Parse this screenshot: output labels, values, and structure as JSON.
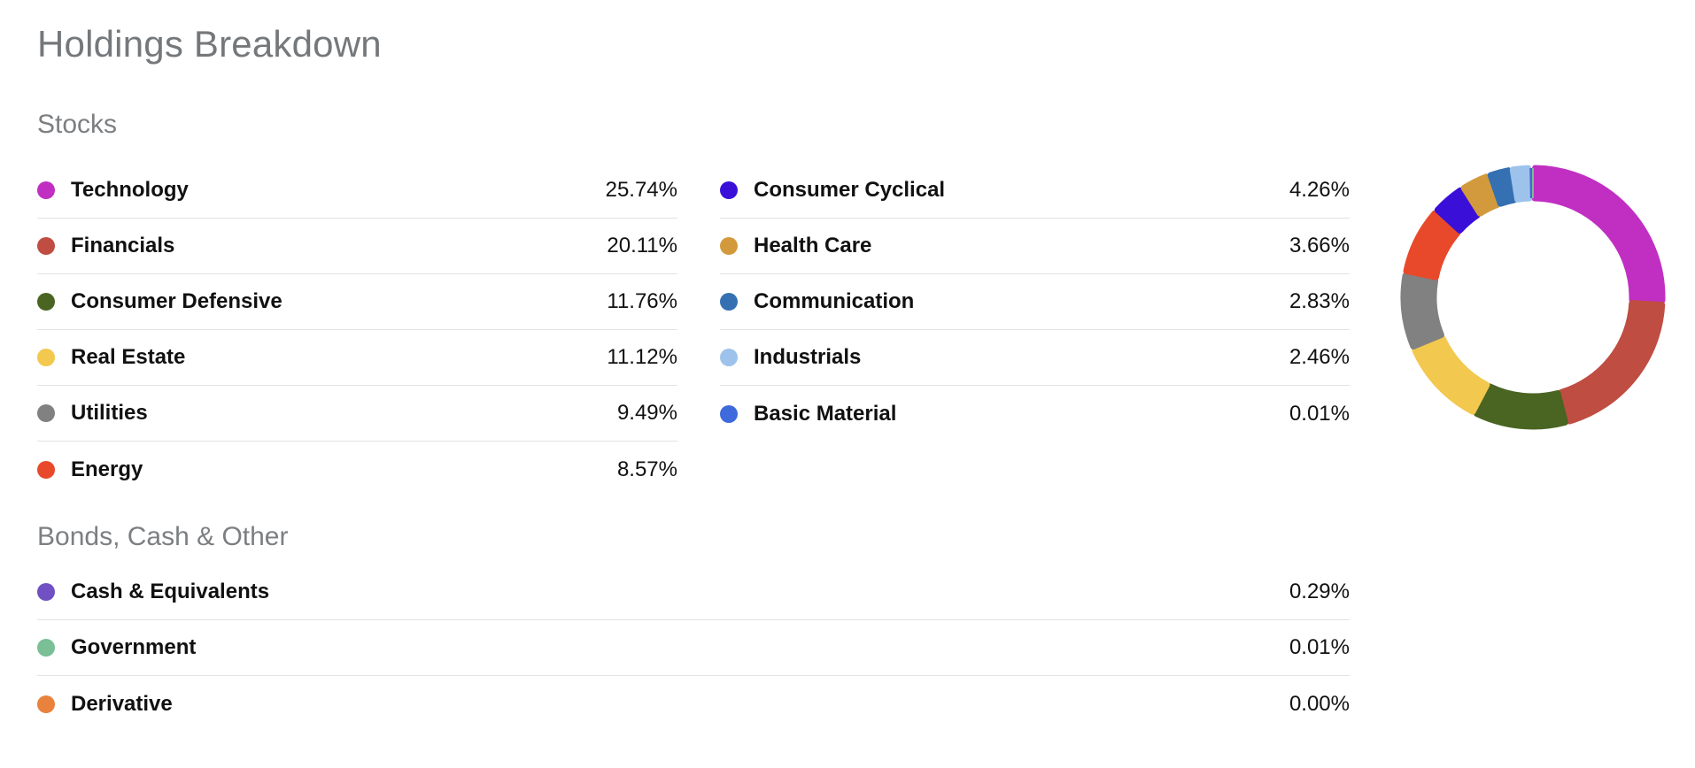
{
  "title": "Holdings Breakdown",
  "sections": [
    {
      "title": "Stocks",
      "columns": [
        {
          "items": [
            {
              "label": "Technology",
              "pct": "25.74%",
              "color": "#c02fc2"
            },
            {
              "label": "Financials",
              "pct": "20.11%",
              "color": "#bf4d42"
            },
            {
              "label": "Consumer Defensive",
              "pct": "11.76%",
              "color": "#4a6422"
            },
            {
              "label": "Real Estate",
              "pct": "11.12%",
              "color": "#f2c84e"
            },
            {
              "label": "Utilities",
              "pct": "9.49%",
              "color": "#818181"
            },
            {
              "label": "Energy",
              "pct": "8.57%",
              "color": "#e8492a"
            }
          ]
        },
        {
          "items": [
            {
              "label": "Consumer Cyclical",
              "pct": "4.26%",
              "color": "#3a10d9"
            },
            {
              "label": "Health Care",
              "pct": "3.66%",
              "color": "#d39a3d"
            },
            {
              "label": "Communication",
              "pct": "2.83%",
              "color": "#3470b2"
            },
            {
              "label": "Industrials",
              "pct": "2.46%",
              "color": "#9dc3ec"
            },
            {
              "label": "Basic Material",
              "pct": "0.01%",
              "color": "#3f6adc"
            }
          ]
        }
      ]
    },
    {
      "title": "Bonds, Cash & Other",
      "columns": [
        {
          "items": [
            {
              "label": "Cash & Equivalents",
              "pct": "0.29%",
              "color": "#7050c2"
            },
            {
              "label": "Government",
              "pct": "0.01%",
              "color": "#7abf96"
            },
            {
              "label": "Derivative",
              "pct": "0.00%",
              "color": "#e8823c"
            }
          ]
        }
      ]
    }
  ],
  "chart_data": {
    "type": "pie",
    "subtype": "donut",
    "title": "Holdings Breakdown",
    "labels": [
      "Technology",
      "Financials",
      "Consumer Defensive",
      "Real Estate",
      "Utilities",
      "Energy",
      "Consumer Cyclical",
      "Health Care",
      "Communication",
      "Industrials",
      "Basic Material",
      "Cash & Equivalents",
      "Government",
      "Derivative"
    ],
    "values": [
      25.74,
      20.11,
      11.76,
      11.12,
      9.49,
      8.57,
      4.26,
      3.66,
      2.83,
      2.46,
      0.01,
      0.29,
      0.01,
      0.0
    ],
    "colors": [
      "#c02fc2",
      "#bf4d42",
      "#4a6422",
      "#f2c84e",
      "#818181",
      "#e8492a",
      "#3a10d9",
      "#d39a3d",
      "#3470b2",
      "#9dc3ec",
      "#3f6adc",
      "#7050c2",
      "#7abf96",
      "#e8823c"
    ],
    "start_angle_deg": 0,
    "direction": "clockwise",
    "inner_radius_ratio": 0.77,
    "pad_angle_deg": 2,
    "corner_radius_px": 3.5,
    "legend_position": "left-tables",
    "units": "%"
  }
}
